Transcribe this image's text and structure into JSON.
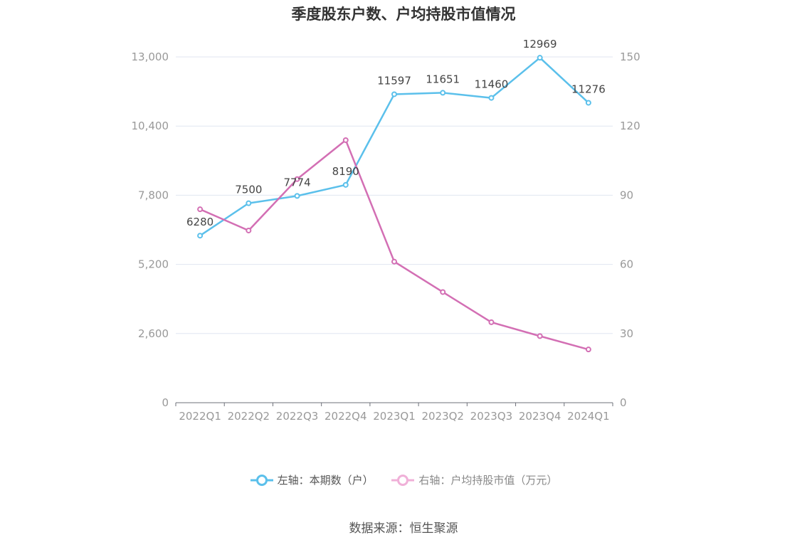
{
  "chart_data": {
    "type": "line",
    "title": "季度股东户数、户均持股市值情况",
    "categories": [
      "2022Q1",
      "2022Q2",
      "2022Q3",
      "2022Q4",
      "2023Q1",
      "2023Q2",
      "2023Q3",
      "2023Q4",
      "2024Q1"
    ],
    "y_left": {
      "min": 0,
      "max": 13000,
      "ticks": [
        "0",
        "2,600",
        "5,200",
        "7,800",
        "10,400",
        "13,000"
      ],
      "tick_values": [
        0,
        2600,
        5200,
        7800,
        10400,
        13000
      ]
    },
    "y_right": {
      "min": 0,
      "max": 150,
      "ticks": [
        "0",
        "30",
        "60",
        "90",
        "120",
        "150"
      ],
      "tick_values": [
        0,
        30,
        60,
        90,
        120,
        150
      ]
    },
    "series": [
      {
        "name": "左轴：本期数（户）",
        "axis": "left",
        "color": "#5bc0eb",
        "values": [
          6280,
          7500,
          7774,
          8190,
          11597,
          11651,
          11460,
          12969,
          11276
        ],
        "labels": [
          "6280",
          "7500",
          "7774",
          "8190",
          "11597",
          "11651",
          "11460",
          "12969",
          "11276"
        ]
      },
      {
        "name": "右轴：户均持股市值（万元）",
        "axis": "right",
        "color": "#d36fb4",
        "values": [
          83.9,
          74.7,
          97.0,
          113.9,
          61.2,
          48.0,
          34.9,
          28.9,
          23.1
        ]
      }
    ],
    "grid": true,
    "legend": "bottom"
  },
  "legend": {
    "left_label": "左轴：本期数（户）",
    "right_label": "右轴：户均持股市值（万元）"
  },
  "source": "数据来源：恒生聚源"
}
